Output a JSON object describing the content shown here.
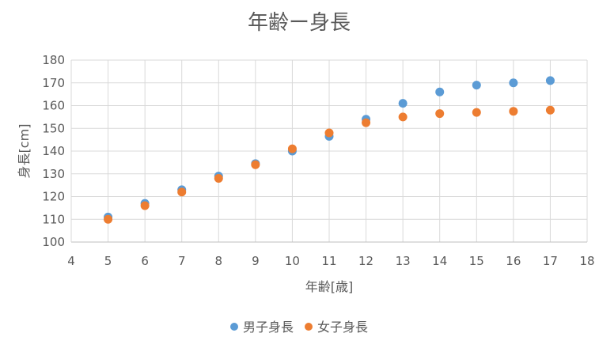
{
  "chart_data": {
    "type": "scatter",
    "title": "年齢ー身長",
    "xlabel": "年齢[歳]",
    "ylabel": "身長[cm]",
    "xlim": [
      4,
      18
    ],
    "ylim": [
      100,
      180
    ],
    "x_ticks": [
      4,
      5,
      6,
      7,
      8,
      9,
      10,
      11,
      12,
      13,
      14,
      15,
      16,
      17,
      18
    ],
    "y_ticks": [
      100,
      110,
      120,
      130,
      140,
      150,
      160,
      170,
      180
    ],
    "grid": true,
    "legend_position": "bottom",
    "series": [
      {
        "name": "男子身長",
        "color": "#5b9bd5",
        "points": [
          {
            "x": 5,
            "y": 111
          },
          {
            "x": 6,
            "y": 117
          },
          {
            "x": 7,
            "y": 123
          },
          {
            "x": 8,
            "y": 129
          },
          {
            "x": 9,
            "y": 134.5
          },
          {
            "x": 10,
            "y": 140
          },
          {
            "x": 11,
            "y": 146.5
          },
          {
            "x": 12,
            "y": 154
          },
          {
            "x": 13,
            "y": 161
          },
          {
            "x": 14,
            "y": 166
          },
          {
            "x": 15,
            "y": 169
          },
          {
            "x": 16,
            "y": 170
          },
          {
            "x": 17,
            "y": 171
          }
        ]
      },
      {
        "name": "女子身長",
        "color": "#ed7d31",
        "points": [
          {
            "x": 5,
            "y": 110
          },
          {
            "x": 6,
            "y": 116
          },
          {
            "x": 7,
            "y": 122
          },
          {
            "x": 8,
            "y": 128
          },
          {
            "x": 9,
            "y": 134
          },
          {
            "x": 10,
            "y": 141
          },
          {
            "x": 11,
            "y": 148
          },
          {
            "x": 12,
            "y": 152.5
          },
          {
            "x": 13,
            "y": 155
          },
          {
            "x": 14,
            "y": 156.5
          },
          {
            "x": 15,
            "y": 157
          },
          {
            "x": 16,
            "y": 157.5
          },
          {
            "x": 17,
            "y": 158
          }
        ]
      }
    ]
  }
}
